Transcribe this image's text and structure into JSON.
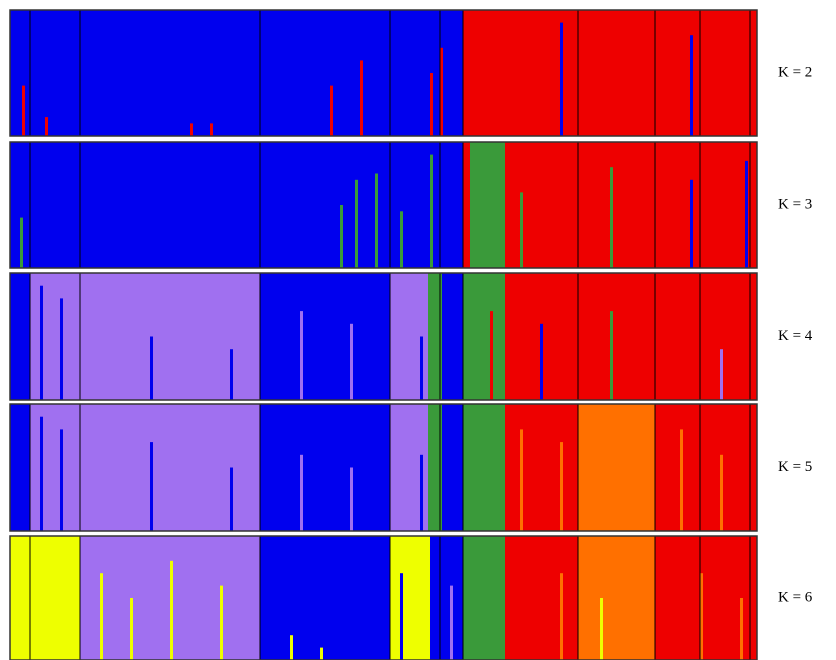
{
  "panels": [
    {
      "label": "K = 2"
    },
    {
      "label": "K = 3"
    },
    {
      "label": "K = 4"
    },
    {
      "label": "K = 5"
    },
    {
      "label": "K = 6"
    }
  ]
}
